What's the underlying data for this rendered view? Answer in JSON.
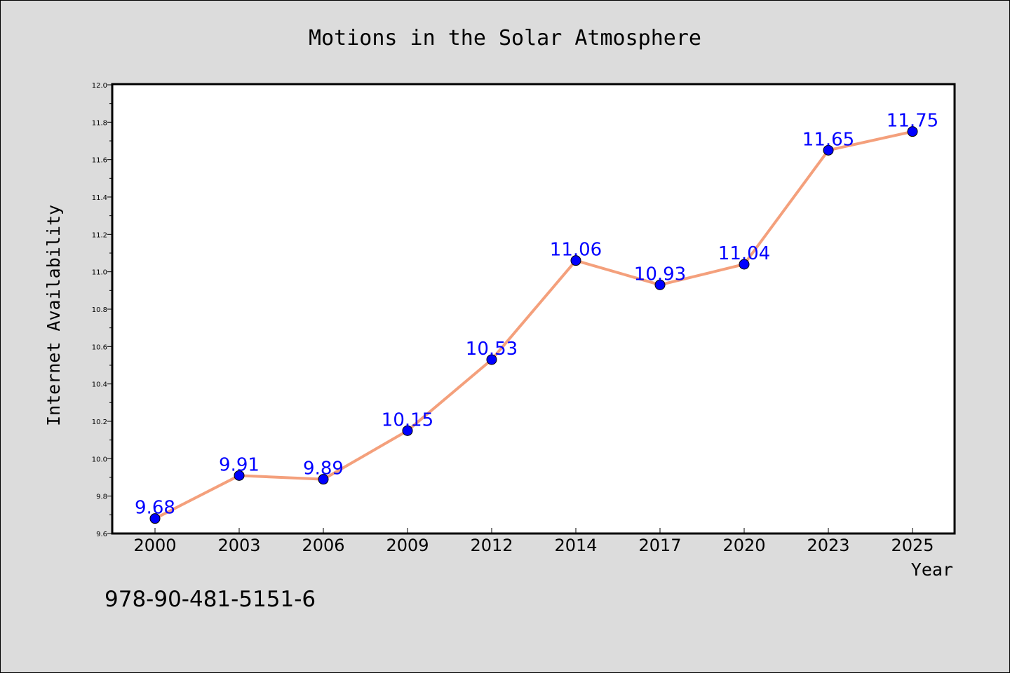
{
  "chart_data": {
    "type": "line",
    "title": "Motions in the Solar Atmosphere",
    "xlabel": "Year",
    "ylabel": "Internet Availability",
    "categories": [
      "2000",
      "2003",
      "2006",
      "2009",
      "2012",
      "2014",
      "2017",
      "2020",
      "2023",
      "2025"
    ],
    "series": [
      {
        "values": [
          9.68,
          9.91,
          9.89,
          10.15,
          10.53,
          11.06,
          10.93,
          11.04,
          11.65,
          11.75
        ],
        "line_color": "#f4a07c",
        "marker_color": "#0000ff"
      }
    ],
    "data_labels": [
      "9.68",
      "9.91",
      "9.89",
      "10.15",
      "10.53",
      "11.06",
      "10.93",
      "11.04",
      "11.65",
      "11.75"
    ],
    "ylim": [
      9.6,
      12.0
    ],
    "yticks": [
      "9.6",
      "9.8",
      "10.0",
      "10.2",
      "10.4",
      "10.6",
      "10.8",
      "11.0",
      "11.2",
      "11.4",
      "11.6",
      "11.8",
      "12.0"
    ],
    "grid": false,
    "legend": "none",
    "label_color": "#0000ff"
  },
  "footer": {
    "isbn": "978-90-481-5151-6"
  },
  "colors": {
    "background": "#dcdcdc",
    "plot_background": "#ffffff"
  }
}
